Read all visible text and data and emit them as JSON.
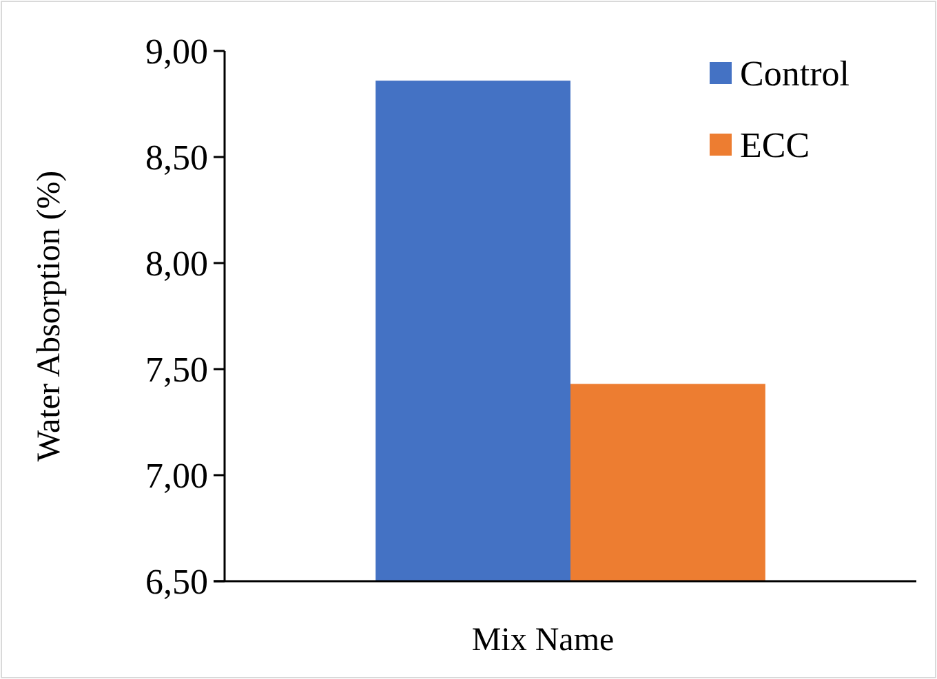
{
  "chart_data": {
    "type": "bar",
    "xlabel": "Mix Name",
    "ylabel": "Water Absorption (%)",
    "categories": [
      null
    ],
    "series": [
      {
        "name": "Control",
        "color": "#4472c4",
        "values": [
          8.86
        ]
      },
      {
        "name": "ECC",
        "color": "#ed7d31",
        "values": [
          7.43
        ]
      }
    ],
    "ylim": [
      6.5,
      9
    ],
    "yticks": [
      {
        "value": 6.5,
        "label": "6,50"
      },
      {
        "value": 7,
        "label": "7,00"
      },
      {
        "value": 7.5,
        "label": "7,50"
      },
      {
        "value": 8,
        "label": "8,00"
      },
      {
        "value": 8.5,
        "label": "8,50"
      },
      {
        "value": 9,
        "label": "9,00"
      }
    ],
    "grid": false,
    "legend": "top right"
  }
}
